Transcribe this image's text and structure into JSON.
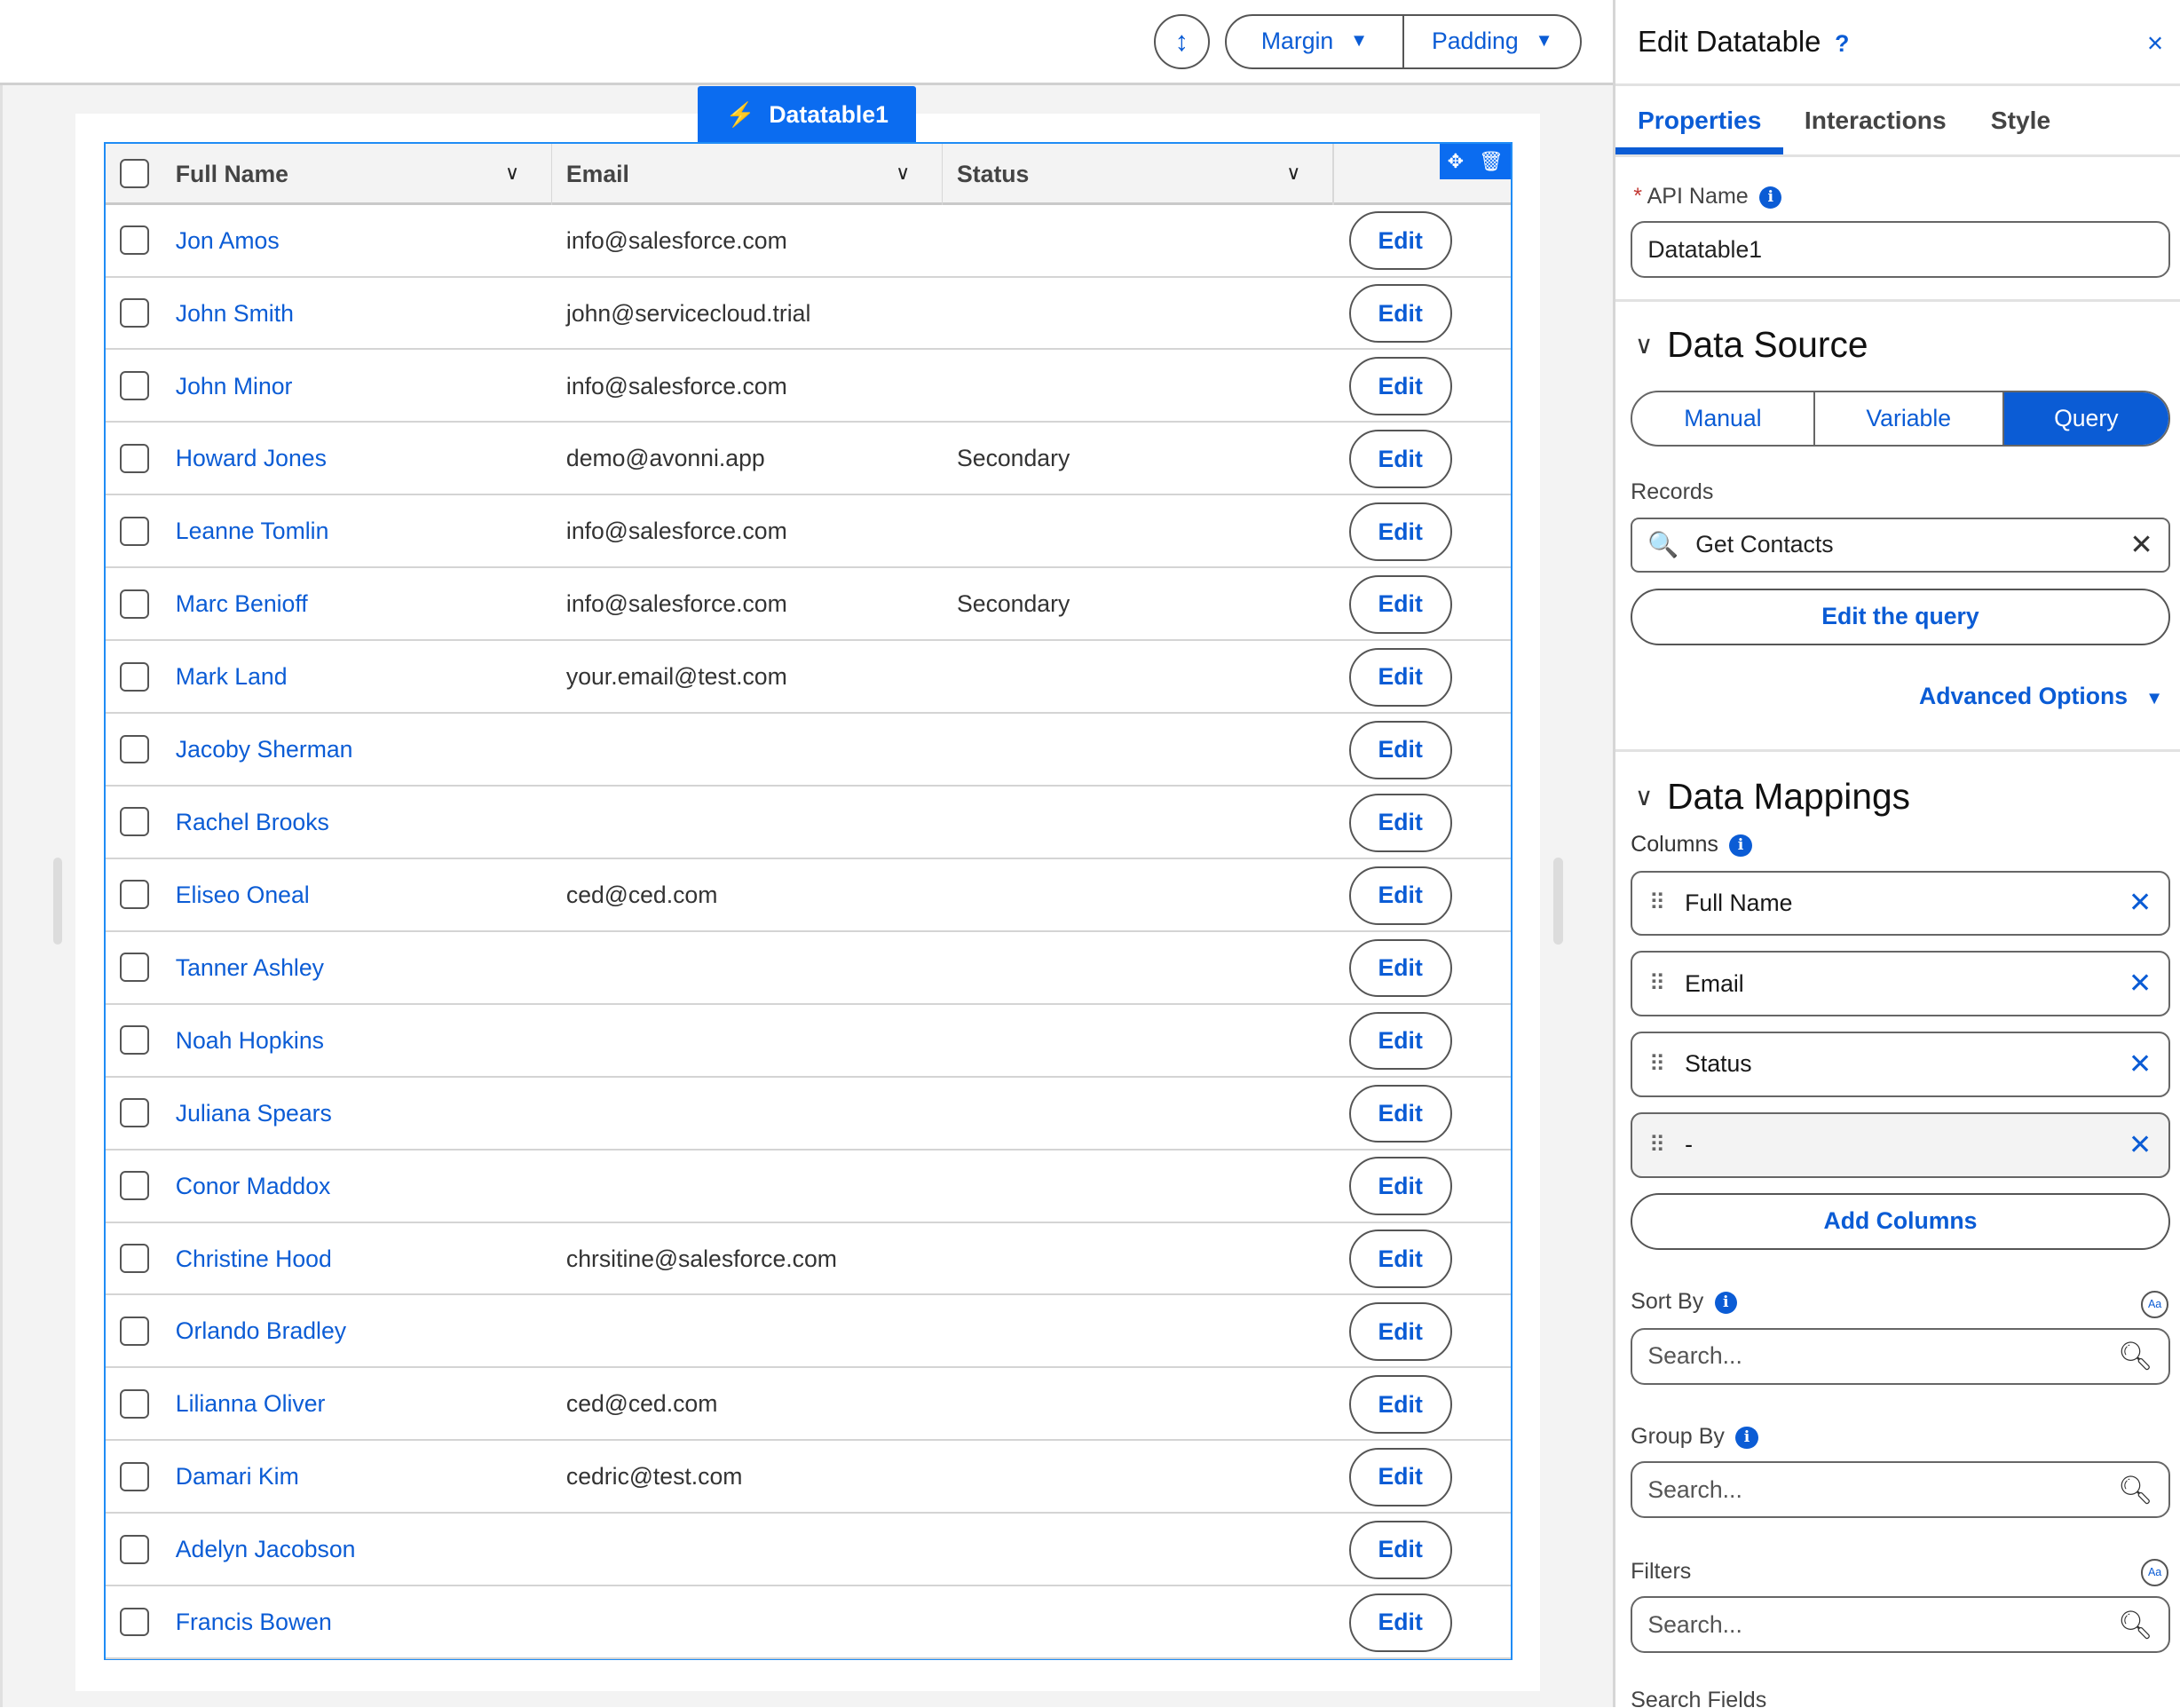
{
  "toolbar": {
    "margin_label": "Margin",
    "padding_label": "Padding"
  },
  "component": {
    "tab_label": "Datatable1"
  },
  "table": {
    "headers": [
      "Full Name",
      "Email",
      "Status"
    ],
    "edit_label": "Edit",
    "rows": [
      {
        "name": "Jon Amos",
        "email": "info@salesforce.com",
        "status": ""
      },
      {
        "name": "John Smith",
        "email": "john@servicecloud.trial",
        "status": ""
      },
      {
        "name": "John Minor",
        "email": "info@salesforce.com",
        "status": ""
      },
      {
        "name": "Howard Jones",
        "email": "demo@avonni.app",
        "status": "Secondary"
      },
      {
        "name": "Leanne Tomlin",
        "email": "info@salesforce.com",
        "status": ""
      },
      {
        "name": "Marc Benioff",
        "email": "info@salesforce.com",
        "status": "Secondary"
      },
      {
        "name": "Mark Land",
        "email": "your.email@test.com",
        "status": ""
      },
      {
        "name": "Jacoby Sherman",
        "email": "",
        "status": ""
      },
      {
        "name": "Rachel Brooks",
        "email": "",
        "status": ""
      },
      {
        "name": "Eliseo Oneal",
        "email": "ced@ced.com",
        "status": ""
      },
      {
        "name": "Tanner Ashley",
        "email": "",
        "status": ""
      },
      {
        "name": "Noah Hopkins",
        "email": "",
        "status": ""
      },
      {
        "name": "Juliana Spears",
        "email": "",
        "status": ""
      },
      {
        "name": "Conor Maddox",
        "email": "",
        "status": ""
      },
      {
        "name": "Christine Hood",
        "email": "chrsitine@salesforce.com",
        "status": ""
      },
      {
        "name": "Orlando Bradley",
        "email": "",
        "status": ""
      },
      {
        "name": "Lilianna Oliver",
        "email": "ced@ced.com",
        "status": ""
      },
      {
        "name": "Damari Kim",
        "email": "cedric@test.com",
        "status": ""
      },
      {
        "name": "Adelyn Jacobson",
        "email": "",
        "status": ""
      },
      {
        "name": "Francis Bowen",
        "email": "",
        "status": ""
      }
    ]
  },
  "panel": {
    "title": "Edit Datatable",
    "help": "?",
    "close": "×",
    "tabs": [
      "Properties",
      "Interactions",
      "Style"
    ],
    "api_name_label": "API Name",
    "api_name_value": "Datatable1",
    "data_source": {
      "heading": "Data Source",
      "options": [
        "Manual",
        "Variable",
        "Query"
      ],
      "selected": "Query",
      "records_label": "Records",
      "records_value": "Get Contacts",
      "edit_query": "Edit the query",
      "advanced": "Advanced Options"
    },
    "mappings": {
      "heading": "Data Mappings",
      "columns_label": "Columns",
      "columns": [
        "Full Name",
        "Email",
        "Status",
        "-"
      ],
      "add_columns": "Add Columns",
      "sort_by": "Sort By",
      "group_by": "Group By",
      "filters": "Filters",
      "search_placeholder": "Search...",
      "search_fields": "Search Fields"
    }
  },
  "colors": {
    "accent": "#0b5cd5",
    "selection": "#0b6cf0"
  }
}
